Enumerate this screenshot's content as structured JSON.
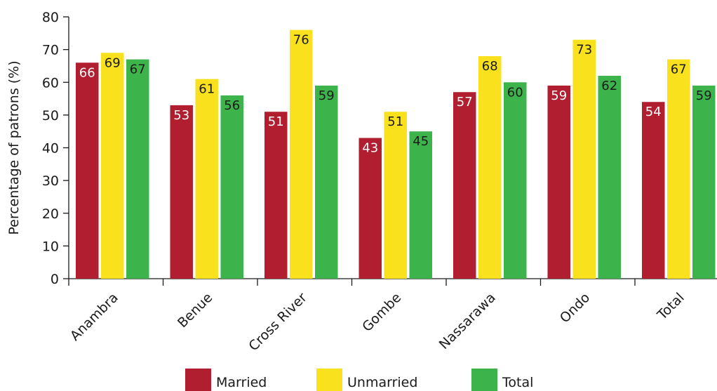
{
  "chart_data": {
    "type": "bar",
    "ylabel": "Percentage of patrons (%)",
    "xlabel": "",
    "ylim": [
      0,
      80
    ],
    "yticks": [
      0,
      10,
      20,
      30,
      40,
      50,
      60,
      70,
      80
    ],
    "categories": [
      "Anambra",
      "Benue",
      "Cross River",
      "Gombe",
      "Nassarawa",
      "Ondo",
      "Total"
    ],
    "series": [
      {
        "name": "Married",
        "color": "#b01e2f",
        "label_color": "#ffffff",
        "values": [
          66,
          53,
          51,
          43,
          57,
          59,
          54
        ]
      },
      {
        "name": "Unmarried",
        "color": "#f9e11e",
        "label_color": "#1a1a1a",
        "values": [
          69,
          61,
          76,
          51,
          68,
          73,
          67
        ]
      },
      {
        "name": "Total",
        "color": "#3cb44b",
        "label_color": "#1a1a1a",
        "values": [
          67,
          56,
          59,
          45,
          60,
          62,
          59
        ]
      }
    ],
    "legend_position": "bottom",
    "grid": false
  }
}
